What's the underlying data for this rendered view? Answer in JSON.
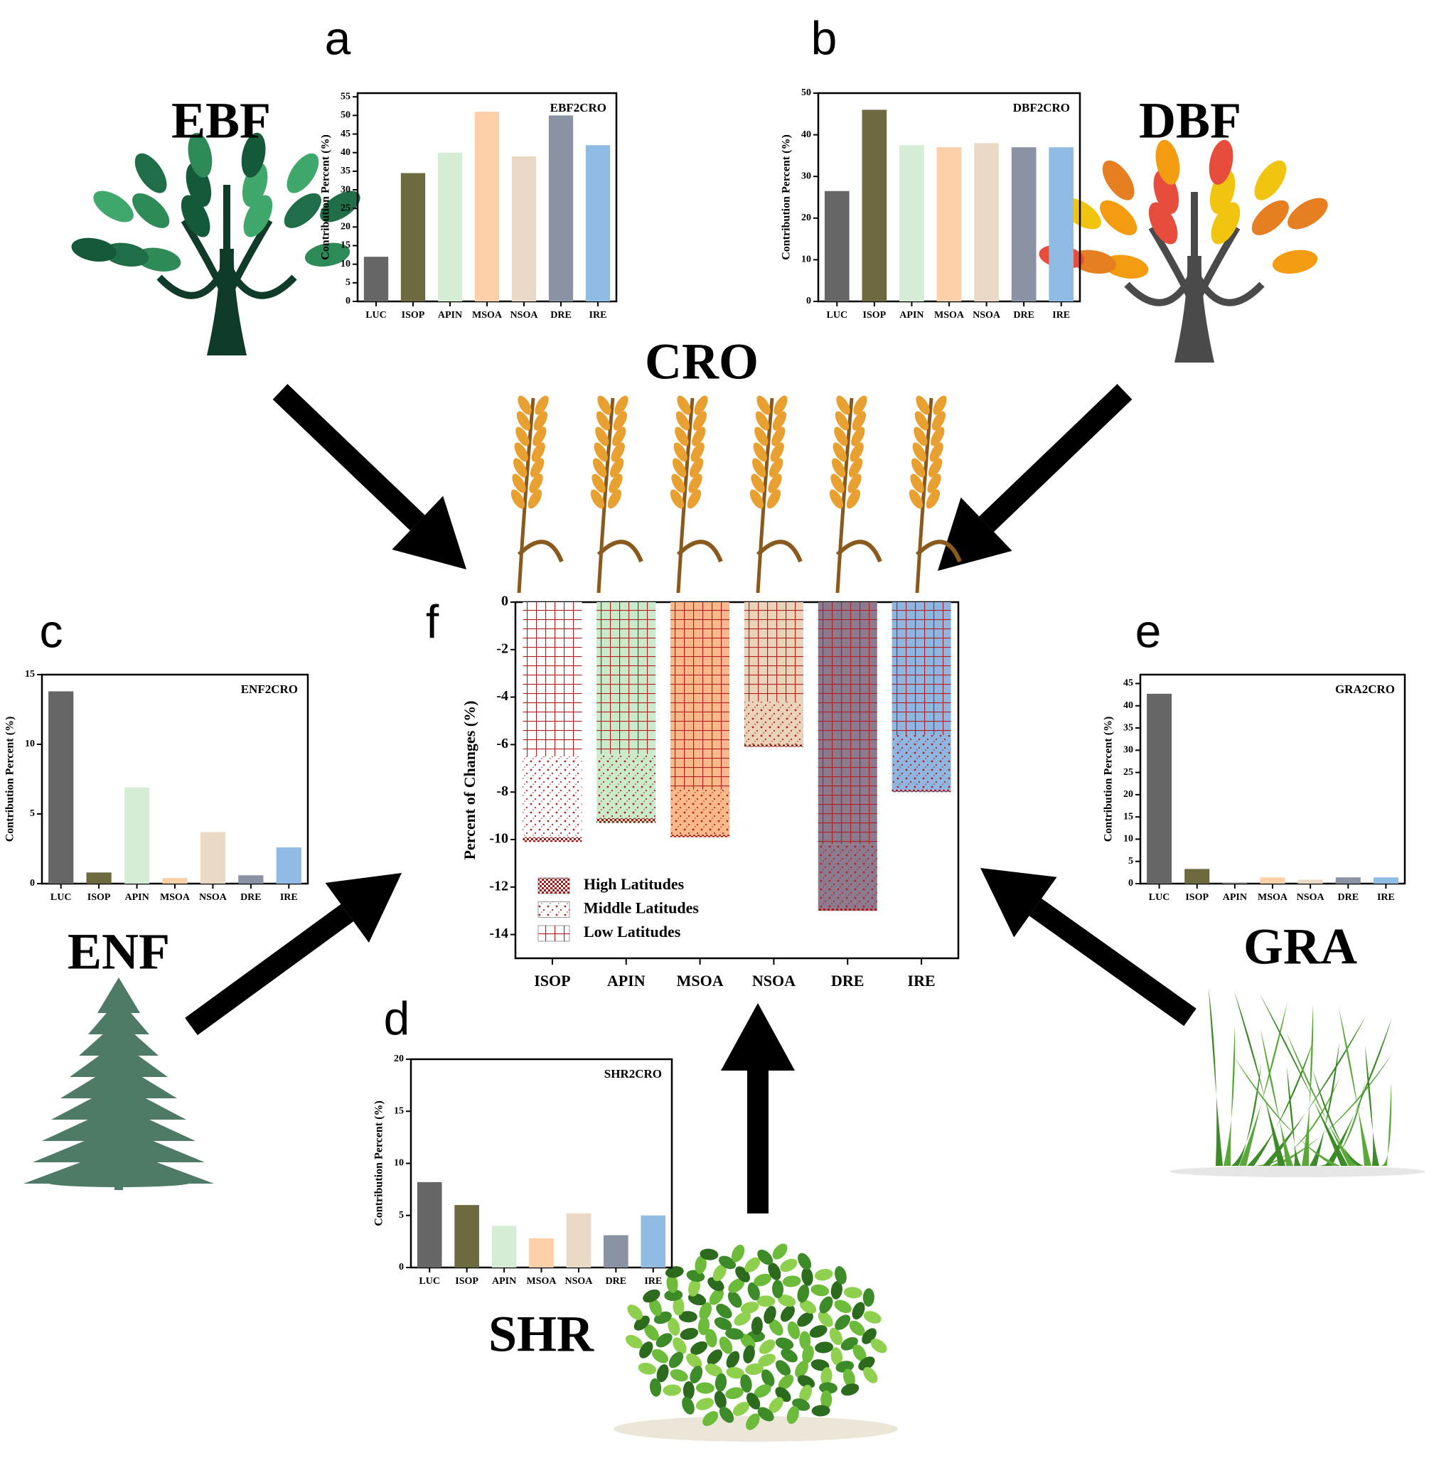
{
  "chart_data": [
    {
      "type": "bar",
      "panel_label": "a",
      "source_label": "EBF",
      "title": "EBF2CRO",
      "y_label": "Contribution Percent (%)",
      "categories": [
        "LUC",
        "ISOP",
        "APIN",
        "MSOA",
        "NSOA",
        "DRE",
        "IRE"
      ],
      "values": [
        12,
        34.5,
        40,
        51,
        39,
        50,
        42
      ],
      "colors": [
        "#666666",
        "#6e6a40",
        "#d4edd4",
        "#fdd0a8",
        "#ead9c4",
        "#8a93a3",
        "#90bbe3"
      ],
      "ylim": [
        0,
        56
      ],
      "yticks": [
        0,
        5,
        10,
        15,
        20,
        25,
        30,
        35,
        40,
        45,
        50,
        55
      ]
    },
    {
      "type": "bar",
      "panel_label": "b",
      "source_label": "DBF",
      "title": "DBF2CRO",
      "y_label": "Contribution Percent (%)",
      "categories": [
        "LUC",
        "ISOP",
        "APIN",
        "MSOA",
        "NSOA",
        "DRE",
        "IRE"
      ],
      "values": [
        26.5,
        46,
        37.5,
        37,
        38,
        37,
        37
      ],
      "colors": [
        "#666666",
        "#6e6a40",
        "#d4edd4",
        "#fdd0a8",
        "#ead9c4",
        "#8a93a3",
        "#90bbe3"
      ],
      "ylim": [
        0,
        50
      ],
      "yticks": [
        0,
        10,
        20,
        30,
        40,
        50
      ]
    },
    {
      "type": "bar",
      "panel_label": "c",
      "source_label": "ENF",
      "title": "ENF2CRO",
      "y_label": "Contribution Percent (%)",
      "categories": [
        "LUC",
        "ISOP",
        "APIN",
        "MSOA",
        "NSOA",
        "DRE",
        "IRE"
      ],
      "values": [
        13.8,
        0.8,
        6.9,
        0.4,
        3.7,
        0.6,
        2.6
      ],
      "colors": [
        "#666666",
        "#6e6a40",
        "#d4edd4",
        "#fdd0a8",
        "#ead9c4",
        "#8a93a3",
        "#90bbe3"
      ],
      "ylim": [
        0,
        15
      ],
      "yticks": [
        0,
        5,
        10,
        15
      ]
    },
    {
      "type": "bar",
      "panel_label": "d",
      "source_label": "SHR",
      "title": "SHR2CRO",
      "y_label": "Contribution Percent (%)",
      "categories": [
        "LUC",
        "ISOP",
        "APIN",
        "MSOA",
        "NSOA",
        "DRE",
        "IRE"
      ],
      "values": [
        8.2,
        6,
        4,
        2.8,
        5.2,
        3.1,
        5
      ],
      "colors": [
        "#666666",
        "#6e6a40",
        "#d4edd4",
        "#fdd0a8",
        "#ead9c4",
        "#8a93a3",
        "#90bbe3"
      ],
      "ylim": [
        0,
        20
      ],
      "yticks": [
        0,
        5,
        10,
        15,
        20
      ]
    },
    {
      "type": "bar",
      "panel_label": "e",
      "source_label": "GRA",
      "title": "GRA2CRO",
      "y_label": "Contribution Percent (%)",
      "categories": [
        "LUC",
        "ISOP",
        "APIN",
        "MSOA",
        "NSOA",
        "DRE",
        "IRE"
      ],
      "values": [
        42.7,
        3.3,
        0.1,
        1.4,
        0.9,
        1.4,
        1.4
      ],
      "colors": [
        "#666666",
        "#6e6a40",
        "#d4edd4",
        "#fdd0a8",
        "#ead9c4",
        "#8a93a3",
        "#90bbe3"
      ],
      "ylim": [
        0,
        47
      ],
      "yticks": [
        0,
        5,
        10,
        15,
        20,
        25,
        30,
        35,
        40,
        45
      ]
    },
    {
      "type": "stacked_bar",
      "panel_label": "f",
      "target_label": "CRO",
      "y_label": "Percent of Changes (%)",
      "categories": [
        "ISOP",
        "APIN",
        "MSOA",
        "NSOA",
        "DRE",
        "IRE"
      ],
      "colors": [
        "#ffffff",
        "#c9ebc9",
        "#fbb98a",
        "#ead3b8",
        "#8c7a8f",
        "#8fb6e0"
      ],
      "series": [
        {
          "name": "High Latitudes",
          "pattern": "checker",
          "values": [
            -0.2,
            -0.2,
            -0.1,
            -0.1,
            -0.1,
            -0.1
          ]
        },
        {
          "name": "Middle Latitudes",
          "pattern": "dots",
          "values": [
            -3.4,
            -2.7,
            -1.9,
            -1.8,
            -2.7,
            -2.3
          ]
        },
        {
          "name": "Low Latitudes",
          "pattern": "grid",
          "values": [
            -6.5,
            -6.4,
            -7.9,
            -4.2,
            -10.2,
            -5.6
          ]
        }
      ],
      "ylim": [
        -15,
        0
      ],
      "yticks": [
        0,
        -2,
        -4,
        -6,
        -8,
        -10,
        -12,
        -14
      ]
    }
  ]
}
